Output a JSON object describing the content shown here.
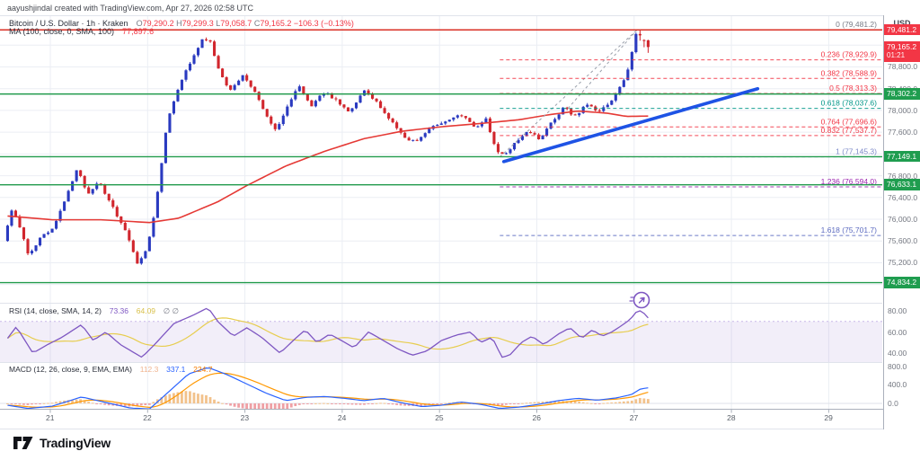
{
  "header": {
    "attribution": "aayushjindal created with TradingView.com, Apr 27, 2026 02:58 UTC"
  },
  "legend": {
    "symbol": "Bitcoin / U.S. Dollar · 1h · Kraken",
    "ohlc": [
      {
        "k": "O",
        "v": "79,290.2"
      },
      {
        "k": "H",
        "v": "79,299.3"
      },
      {
        "k": "L",
        "v": "79,058.7"
      },
      {
        "k": "C",
        "v": "79,165.2"
      }
    ],
    "change": "−106.3 (−0.13%)",
    "ma": {
      "label": "MA (100, close, 0, SMA, 100)",
      "value": "77,897.6"
    }
  },
  "rsi_legend": {
    "label": "RSI (14, close, SMA, 14, 2)",
    "value": "73.36",
    "ma_value": "64.09",
    "empty": "∅ ∅"
  },
  "macd_legend": {
    "label": "MACD (12, 26, close, 9, EMA, EMA)",
    "hist_value": "112.3",
    "macd_value": "337.1",
    "signal_value": "224.7"
  },
  "price_scale": {
    "currency": "USD",
    "ticks": [
      {
        "label": "78,800.0",
        "price": 78800
      },
      {
        "label": "78,400.0",
        "price": 78400
      },
      {
        "label": "78,000.0",
        "price": 78000
      },
      {
        "label": "77,600.0",
        "price": 77600
      },
      {
        "label": "76,800.0",
        "price": 76800
      },
      {
        "label": "76,400.0",
        "price": 76400
      },
      {
        "label": "76,000.0",
        "price": 76000
      },
      {
        "label": "75,600.0",
        "price": 75600
      },
      {
        "label": "75,200.0",
        "price": 75200
      }
    ],
    "rsi_ticks": [
      {
        "label": "80.00",
        "value": 80
      },
      {
        "label": "60.00",
        "value": 60
      },
      {
        "label": "40.00",
        "value": 40
      }
    ],
    "macd_ticks": [
      {
        "label": "800.0",
        "value": 800
      },
      {
        "label": "400.0",
        "value": 400
      },
      {
        "label": "0.0",
        "value": 0
      }
    ],
    "current_badge": {
      "text": "79,165.2",
      "countdown": "01:21",
      "color": "#f23645",
      "price": 79165.2
    }
  },
  "time_axis": {
    "labels": [
      "21",
      "22",
      "23",
      "24",
      "25",
      "26",
      "27",
      "28",
      "29"
    ],
    "days": [
      21,
      22,
      23,
      24,
      25,
      26,
      27,
      28,
      29
    ]
  },
  "logo": {
    "text": "TradingView"
  },
  "colors": {
    "candle_up": "#2a3ac0",
    "candle_down": "#d1262d",
    "ma_line": "#e53935",
    "trendline": "#1e53e5",
    "ray_green": "#219a4c",
    "ray_red": "#d93025",
    "badge_green": "#1f9d4f",
    "badge_red": "#f23645",
    "rsi_line": "#7e57c2",
    "rsi_ma": "#e7cd4f",
    "rsi_band": "rgba(126,87,194,0.10)",
    "macd_line": "#2962ff",
    "macd_signal": "#ff9800",
    "hist_pos": "#f2c28c",
    "hist_neg": "#efa0a5",
    "grid": "#ebeef4",
    "pane_border": "#e0e3eb",
    "axis_border": "#aab0bb"
  },
  "chart_data": {
    "type": "candlestick",
    "title": "Bitcoin / U.S. Dollar, 1h, Kraken",
    "current_bar": {
      "open": 79290.2,
      "high": 79299.3,
      "low": 79058.7,
      "close": 79165.2,
      "change": -106.3,
      "change_pct": -0.13
    },
    "ma100_value": 77897.6,
    "x_domain_days": [
      20.48,
      29.55
    ],
    "y_domain": [
      74580,
      79700
    ],
    "grid_prices": [
      79200,
      78800,
      78400,
      78000,
      77600,
      77200,
      76800,
      76400,
      76000,
      75600,
      75200,
      74800
    ],
    "fib_levels": [
      {
        "level": "0",
        "price": 79481.2,
        "label": "0 (79,481.2)",
        "color": "#787b86",
        "line": false
      },
      {
        "level": "0.236",
        "price": 78929.9,
        "label": "0.236 (78,929.9)",
        "color": "#f23645",
        "line": true
      },
      {
        "level": "0.382",
        "price": 78588.9,
        "label": "0.382 (78,588.9)",
        "color": "#f23645",
        "line": true
      },
      {
        "level": "0.5",
        "price": 78313.3,
        "label": "0.5 (78,313.3)",
        "color": "#f23645",
        "line": true
      },
      {
        "level": "0.618",
        "price": 78037.6,
        "label": "0.618 (78,037.6)",
        "color": "#009688",
        "line": true
      },
      {
        "level": "0.764",
        "price": 77696.6,
        "label": "0.764 (77,696.6)",
        "color": "#f23645",
        "line": true
      },
      {
        "level": "0.832",
        "price": 77537.7,
        "label": "0.832 (77,537.7)",
        "color": "#f23645",
        "line": true
      },
      {
        "level": "1",
        "price": 77145.3,
        "label": "1 (77,145.3)",
        "color": "#7e8bc9",
        "line": true
      },
      {
        "level": "1.236",
        "price": 76594.0,
        "label": "1.236 (76,594.0)",
        "color": "#9c27b0",
        "line": true
      },
      {
        "level": "1.618",
        "price": 75701.7,
        "label": "1.618 (75,701.7)",
        "color": "#5c6bc0",
        "line": true
      }
    ],
    "fib_start_day": 25.62,
    "fib_baselines": [
      {
        "from": [
          25.62,
          77145.3
        ],
        "to": [
          27.03,
          79481.2
        ]
      },
      {
        "from": [
          26.32,
          78037.6
        ],
        "to": [
          27.03,
          79481.2
        ]
      }
    ],
    "horizontal_rays": [
      {
        "price": 79481.2,
        "style": "red",
        "badge": "79,481.2"
      },
      {
        "price": 78302.2,
        "style": "green",
        "badge": "78,302.2"
      },
      {
        "price": 77149.1,
        "style": "green",
        "badge": "77,149.1"
      },
      {
        "price": 76633.1,
        "style": "green",
        "badge": "76,633.1"
      },
      {
        "price": 74834.2,
        "style": "green",
        "badge": "74,834.2"
      }
    ],
    "trendline": {
      "from": [
        25.66,
        77060
      ],
      "to": [
        28.27,
        78400
      ]
    },
    "price_path": [
      [
        20.54,
        75600
      ],
      [
        20.63,
        76230
      ],
      [
        20.72,
        75800
      ],
      [
        20.8,
        75320
      ],
      [
        20.92,
        75650
      ],
      [
        21.05,
        75850
      ],
      [
        21.18,
        76400
      ],
      [
        21.3,
        76970
      ],
      [
        21.4,
        76420
      ],
      [
        21.52,
        76700
      ],
      [
        21.65,
        76250
      ],
      [
        21.78,
        75850
      ],
      [
        21.92,
        75150
      ],
      [
        22.02,
        75480
      ],
      [
        22.1,
        76200
      ],
      [
        22.22,
        77750
      ],
      [
        22.32,
        78350
      ],
      [
        22.45,
        78850
      ],
      [
        22.58,
        79300
      ],
      [
        22.66,
        79300
      ],
      [
        22.74,
        78800
      ],
      [
        22.86,
        78330
      ],
      [
        23.0,
        78660
      ],
      [
        23.12,
        78350
      ],
      [
        23.22,
        78000
      ],
      [
        23.34,
        77620
      ],
      [
        23.46,
        78080
      ],
      [
        23.58,
        78460
      ],
      [
        23.7,
        78080
      ],
      [
        23.84,
        78340
      ],
      [
        23.96,
        78180
      ],
      [
        24.1,
        77950
      ],
      [
        24.24,
        78400
      ],
      [
        24.38,
        78150
      ],
      [
        24.52,
        77820
      ],
      [
        24.66,
        77480
      ],
      [
        24.8,
        77450
      ],
      [
        24.95,
        77700
      ],
      [
        25.1,
        77820
      ],
      [
        25.25,
        77920
      ],
      [
        25.38,
        77680
      ],
      [
        25.5,
        77840
      ],
      [
        25.6,
        77260
      ],
      [
        25.68,
        77160
      ],
      [
        25.8,
        77420
      ],
      [
        25.92,
        77620
      ],
      [
        26.05,
        77480
      ],
      [
        26.18,
        77800
      ],
      [
        26.3,
        78060
      ],
      [
        26.42,
        77880
      ],
      [
        26.52,
        78120
      ],
      [
        26.64,
        77980
      ],
      [
        26.74,
        78060
      ],
      [
        26.84,
        78320
      ],
      [
        26.94,
        78650
      ],
      [
        27.0,
        79100
      ],
      [
        27.04,
        79430
      ],
      [
        27.09,
        79290
      ],
      [
        27.145,
        79165.2
      ]
    ],
    "ma_path": [
      [
        20.54,
        76060
      ],
      [
        21.0,
        75990
      ],
      [
        21.5,
        75990
      ],
      [
        22.0,
        75940
      ],
      [
        22.3,
        76020
      ],
      [
        22.7,
        76320
      ],
      [
        23.0,
        76620
      ],
      [
        23.4,
        76980
      ],
      [
        23.8,
        77250
      ],
      [
        24.2,
        77480
      ],
      [
        24.6,
        77620
      ],
      [
        25.0,
        77700
      ],
      [
        25.4,
        77760
      ],
      [
        25.8,
        77830
      ],
      [
        26.1,
        77920
      ],
      [
        26.4,
        77990
      ],
      [
        26.7,
        77950
      ],
      [
        26.9,
        77890
      ],
      [
        27.145,
        77897.6
      ]
    ],
    "rsi": {
      "current": 73.36,
      "ma_current": 64.09,
      "band": [
        30,
        70
      ],
      "axis": [
        40,
        60,
        80
      ],
      "path": [
        [
          20.54,
          54
        ],
        [
          20.63,
          65
        ],
        [
          20.8,
          40
        ],
        [
          20.95,
          48
        ],
        [
          21.1,
          55
        ],
        [
          21.3,
          67
        ],
        [
          21.42,
          52
        ],
        [
          21.55,
          60
        ],
        [
          21.7,
          48
        ],
        [
          21.92,
          36
        ],
        [
          22.05,
          48
        ],
        [
          22.25,
          68
        ],
        [
          22.45,
          76
        ],
        [
          22.6,
          83
        ],
        [
          22.7,
          70
        ],
        [
          22.86,
          56
        ],
        [
          23.0,
          64
        ],
        [
          23.15,
          55
        ],
        [
          23.34,
          40
        ],
        [
          23.5,
          54
        ],
        [
          23.6,
          62
        ],
        [
          23.72,
          50
        ],
        [
          23.85,
          58
        ],
        [
          23.97,
          52
        ],
        [
          24.1,
          45
        ],
        [
          24.25,
          60
        ],
        [
          24.4,
          52
        ],
        [
          24.55,
          44
        ],
        [
          24.7,
          38
        ],
        [
          24.85,
          42
        ],
        [
          25.0,
          52
        ],
        [
          25.15,
          57
        ],
        [
          25.3,
          60
        ],
        [
          25.4,
          50
        ],
        [
          25.52,
          55
        ],
        [
          25.62,
          36
        ],
        [
          25.7,
          38
        ],
        [
          25.82,
          50
        ],
        [
          25.93,
          56
        ],
        [
          26.05,
          48
        ],
        [
          26.2,
          58
        ],
        [
          26.32,
          64
        ],
        [
          26.44,
          54
        ],
        [
          26.55,
          62
        ],
        [
          26.65,
          56
        ],
        [
          26.75,
          60
        ],
        [
          26.85,
          66
        ],
        [
          26.94,
          72
        ],
        [
          27.02,
          81
        ],
        [
          27.06,
          79
        ],
        [
          27.145,
          73.36
        ]
      ]
    },
    "macd": {
      "macd_current": 337.1,
      "signal_current": 224.7,
      "hist_current": 112.3,
      "axis": [
        0,
        400,
        800
      ],
      "path": [
        [
          20.54,
          -40
        ],
        [
          20.75,
          -110
        ],
        [
          21.0,
          -60
        ],
        [
          21.3,
          140
        ],
        [
          21.55,
          20
        ],
        [
          21.8,
          -100
        ],
        [
          22.0,
          -120
        ],
        [
          22.2,
          260
        ],
        [
          22.4,
          640
        ],
        [
          22.6,
          780
        ],
        [
          22.8,
          620
        ],
        [
          23.0,
          420
        ],
        [
          23.2,
          220
        ],
        [
          23.4,
          60
        ],
        [
          23.6,
          130
        ],
        [
          23.8,
          150
        ],
        [
          24.0,
          110
        ],
        [
          24.2,
          60
        ],
        [
          24.4,
          110
        ],
        [
          24.6,
          10
        ],
        [
          24.8,
          -70
        ],
        [
          25.0,
          -40
        ],
        [
          25.2,
          30
        ],
        [
          25.4,
          -20
        ],
        [
          25.6,
          -110
        ],
        [
          25.8,
          -80
        ],
        [
          26.0,
          -20
        ],
        [
          26.2,
          60
        ],
        [
          26.4,
          110
        ],
        [
          26.6,
          70
        ],
        [
          26.8,
          120
        ],
        [
          26.95,
          190
        ],
        [
          27.05,
          320
        ],
        [
          27.145,
          337.1
        ]
      ]
    }
  }
}
